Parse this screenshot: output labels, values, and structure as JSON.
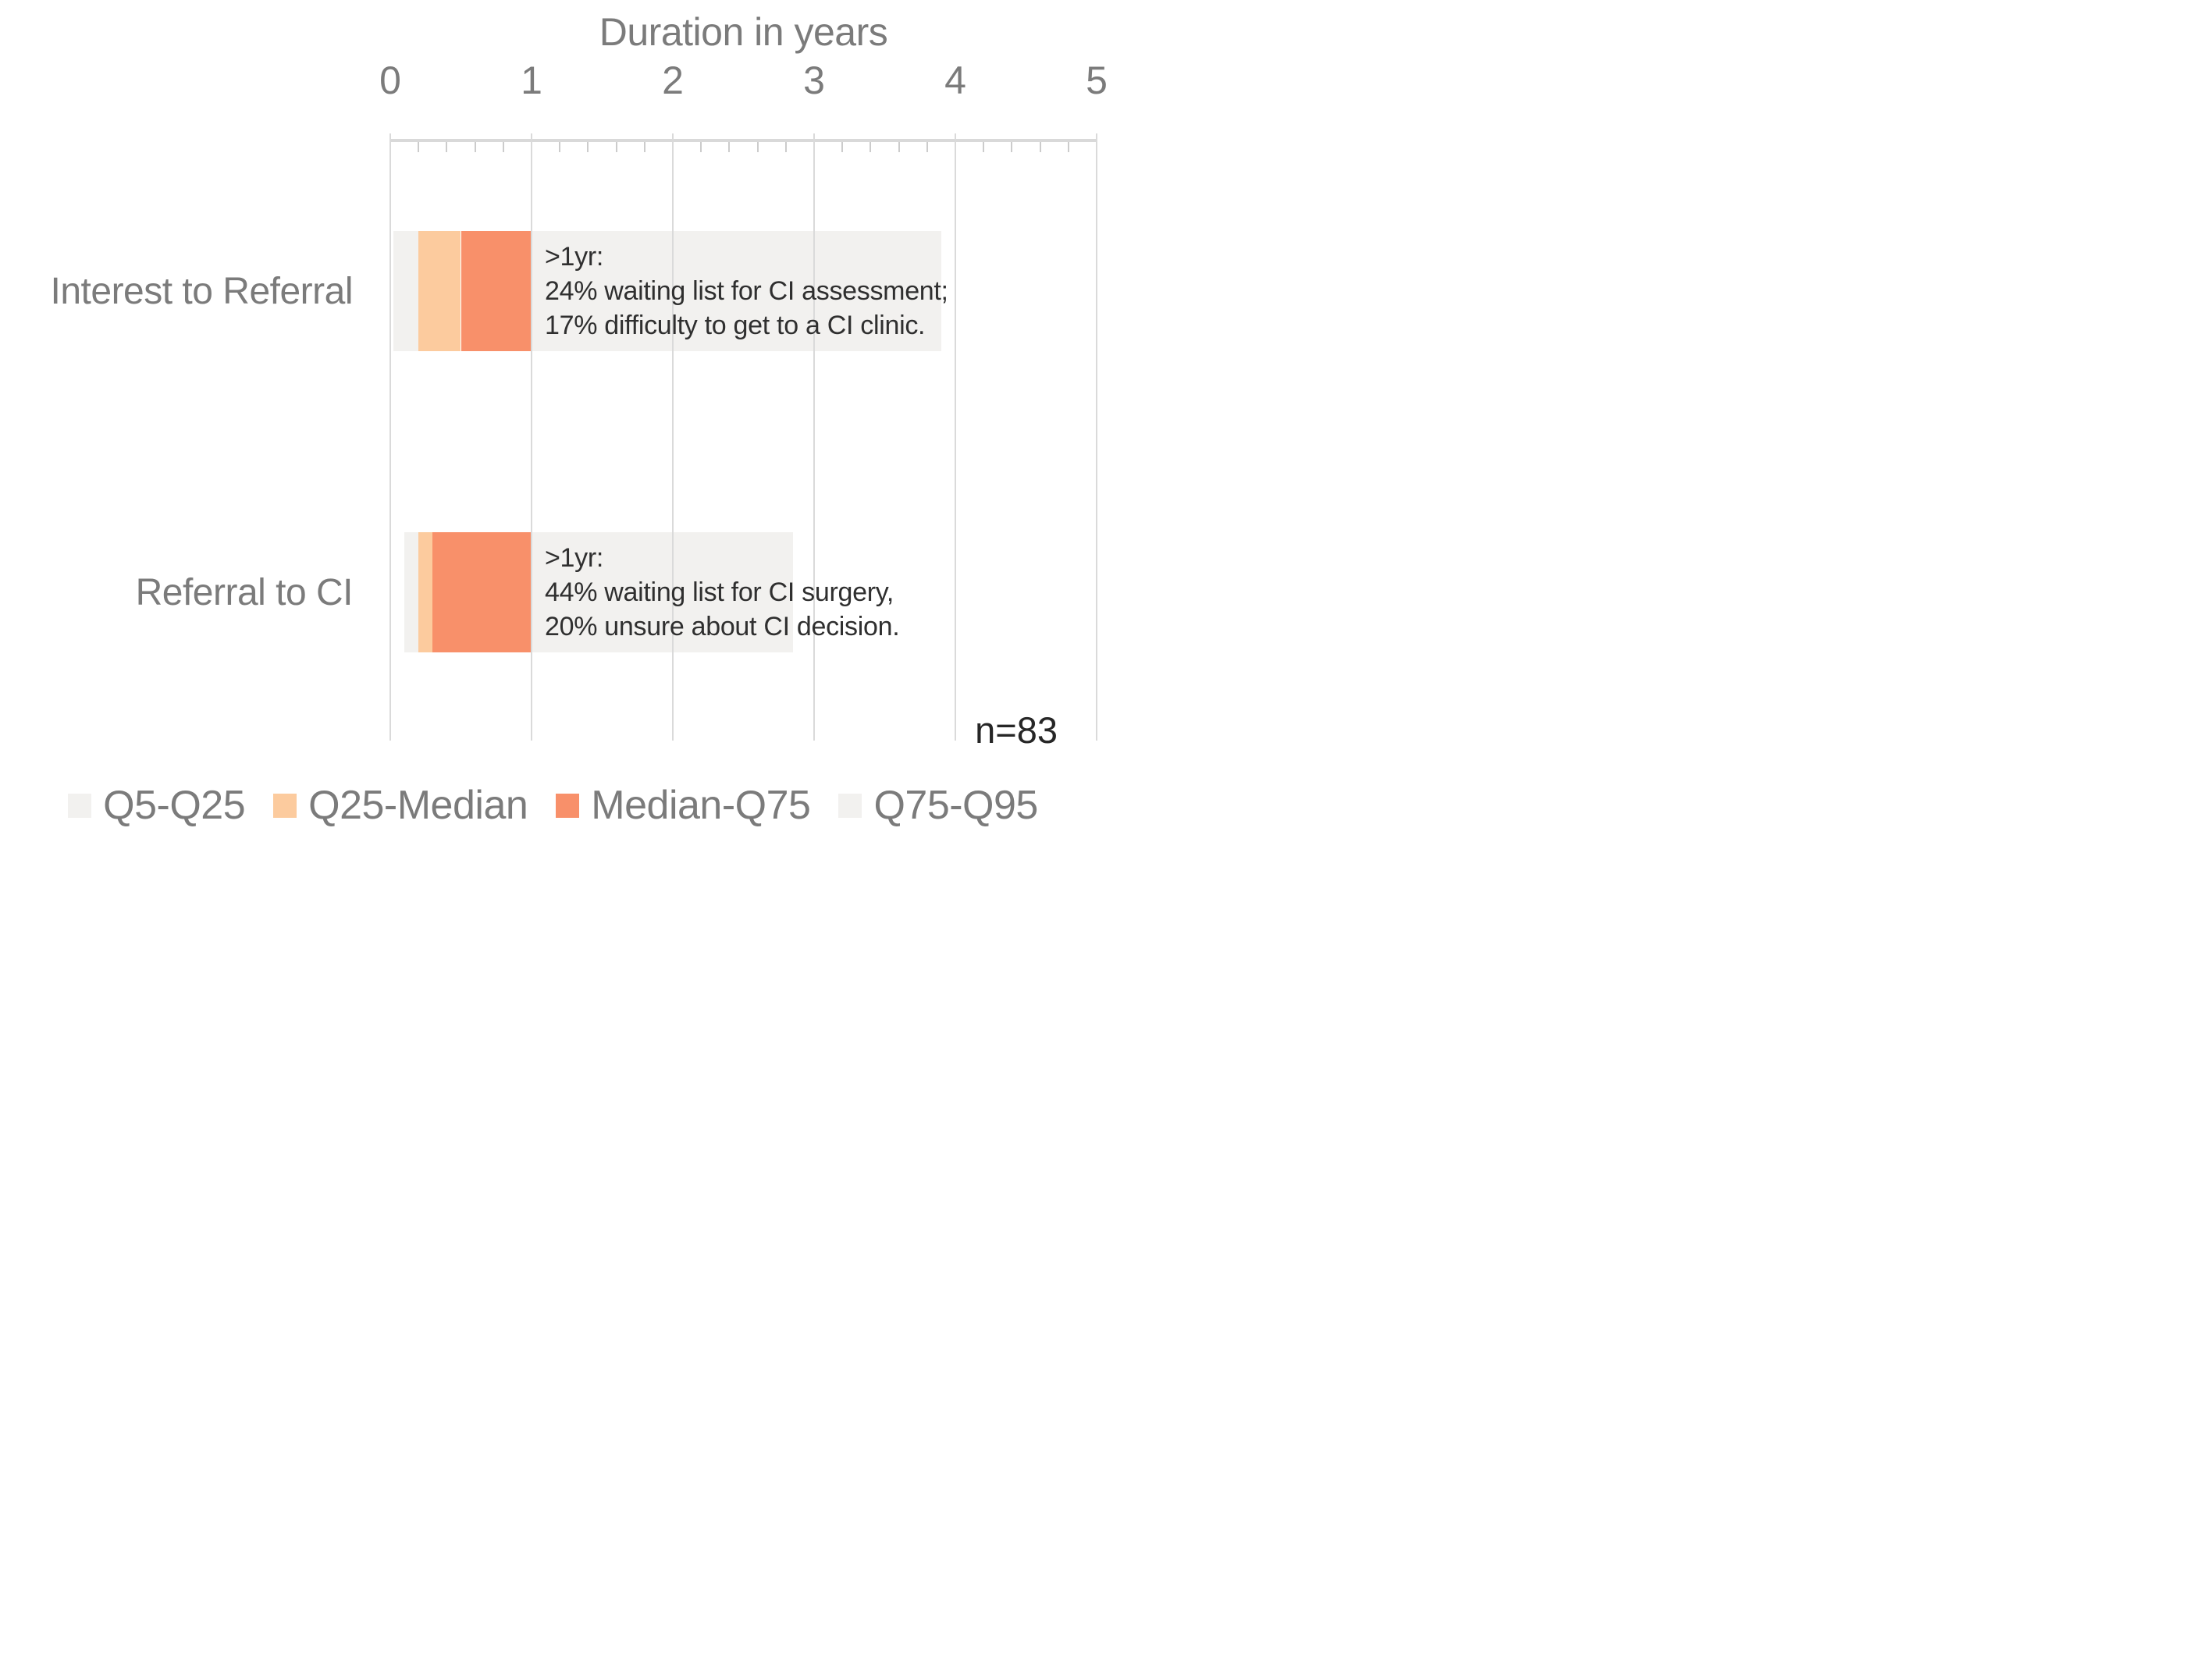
{
  "chart_data": {
    "type": "bar",
    "orientation": "horizontal",
    "title": "Duration in years",
    "note": "n=83",
    "x_axis": {
      "label": "Duration in years",
      "position": "top",
      "min": 0,
      "max": 5,
      "major_ticks": [
        0,
        1,
        2,
        3,
        4,
        5
      ],
      "minor_tick_step": 0.2,
      "grid": true
    },
    "colors": {
      "quartile_gray": "#f2f1ef",
      "light_orange": "#fccb9e",
      "salmon": "#f8906a",
      "gridline": "#dadada",
      "axis_text": "#7b7b7b",
      "annotation_text": "#2f2f2f",
      "note_text": "#262626"
    },
    "segments_order": [
      "q5-q25",
      "q25-median",
      "median-q75",
      "q75-q95"
    ],
    "bars": [
      {
        "category": "Interest to Referral",
        "quantiles": {
          "q5": 0.02,
          "q25": 0.2,
          "median": 0.5,
          "q75": 1.0,
          "q95": 3.9
        },
        "annotation_lines": [
          ">1yr:",
          "24% waiting list for CI assessment;",
          "17% difficulty to get to a CI clinic."
        ]
      },
      {
        "category": "Referral to CI",
        "quantiles": {
          "q5": 0.1,
          "q25": 0.2,
          "median": 0.3,
          "q75": 1.0,
          "q95": 2.85
        },
        "annotation_lines": [
          ">1yr:",
          "44% waiting list for CI surgery,",
          "20% unsure about CI decision."
        ]
      }
    ],
    "legend": [
      {
        "label": "Q5-Q25",
        "color_key": "quartile_gray"
      },
      {
        "label": "Q25-Median",
        "color_key": "light_orange"
      },
      {
        "label": "Median-Q75",
        "color_key": "salmon"
      },
      {
        "label": "Q75-Q95",
        "color_key": "quartile_gray"
      }
    ]
  }
}
